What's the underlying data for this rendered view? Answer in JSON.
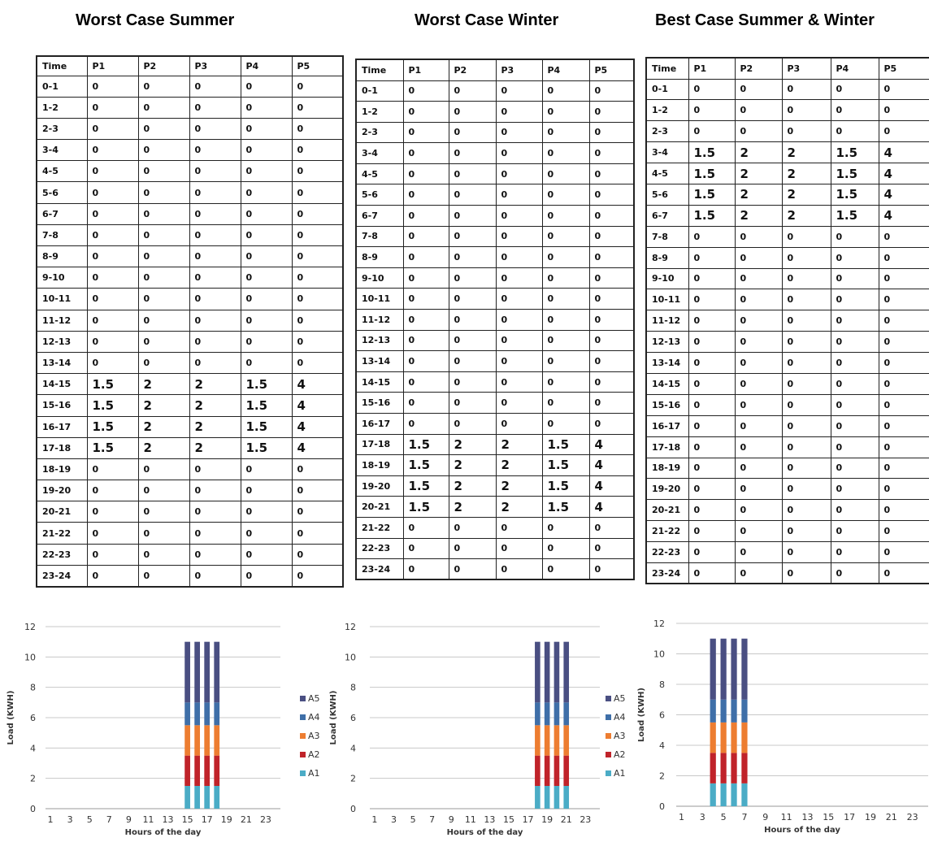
{
  "titles": [
    "Worst Case Summer",
    "Worst Case Winter",
    "Best Case Summer & Winter"
  ],
  "table_header": [
    "Time",
    "P1",
    "P2",
    "P3",
    "P4",
    "P5"
  ],
  "tables": [
    {
      "rows": [
        [
          "0-1",
          "0",
          "0",
          "0",
          "0",
          "0"
        ],
        [
          "1-2",
          "0",
          "0",
          "0",
          "0",
          "0"
        ],
        [
          "2-3",
          "0",
          "0",
          "0",
          "0",
          "0"
        ],
        [
          "3-4",
          "0",
          "0",
          "0",
          "0",
          "0"
        ],
        [
          "4-5",
          "0",
          "0",
          "0",
          "0",
          "0"
        ],
        [
          "5-6",
          "0",
          "0",
          "0",
          "0",
          "0"
        ],
        [
          "6-7",
          "0",
          "0",
          "0",
          "0",
          "0"
        ],
        [
          "7-8",
          "0",
          "0",
          "0",
          "0",
          "0"
        ],
        [
          "8-9",
          "0",
          "0",
          "0",
          "0",
          "0"
        ],
        [
          "9-10",
          "0",
          "0",
          "0",
          "0",
          "0"
        ],
        [
          "10-11",
          "0",
          "0",
          "0",
          "0",
          "0"
        ],
        [
          "11-12",
          "0",
          "0",
          "0",
          "0",
          "0"
        ],
        [
          "12-13",
          "0",
          "0",
          "0",
          "0",
          "0"
        ],
        [
          "13-14",
          "0",
          "0",
          "0",
          "0",
          "0"
        ],
        [
          "14-15",
          "1.5",
          "2",
          "2",
          "1.5",
          "4"
        ],
        [
          "15-16",
          "1.5",
          "2",
          "2",
          "1.5",
          "4"
        ],
        [
          "16-17",
          "1.5",
          "2",
          "2",
          "1.5",
          "4"
        ],
        [
          "17-18",
          "1.5",
          "2",
          "2",
          "1.5",
          "4"
        ],
        [
          "18-19",
          "0",
          "0",
          "0",
          "0",
          "0"
        ],
        [
          "19-20",
          "0",
          "0",
          "0",
          "0",
          "0"
        ],
        [
          "20-21",
          "0",
          "0",
          "0",
          "0",
          "0"
        ],
        [
          "21-22",
          "0",
          "0",
          "0",
          "0",
          "0"
        ],
        [
          "22-23",
          "0",
          "0",
          "0",
          "0",
          "0"
        ],
        [
          "23-24",
          "0",
          "0",
          "0",
          "0",
          "0"
        ]
      ]
    },
    {
      "rows": [
        [
          "0-1",
          "0",
          "0",
          "0",
          "0",
          "0"
        ],
        [
          "1-2",
          "0",
          "0",
          "0",
          "0",
          "0"
        ],
        [
          "2-3",
          "0",
          "0",
          "0",
          "0",
          "0"
        ],
        [
          "3-4",
          "0",
          "0",
          "0",
          "0",
          "0"
        ],
        [
          "4-5",
          "0",
          "0",
          "0",
          "0",
          "0"
        ],
        [
          "5-6",
          "0",
          "0",
          "0",
          "0",
          "0"
        ],
        [
          "6-7",
          "0",
          "0",
          "0",
          "0",
          "0"
        ],
        [
          "7-8",
          "0",
          "0",
          "0",
          "0",
          "0"
        ],
        [
          "8-9",
          "0",
          "0",
          "0",
          "0",
          "0"
        ],
        [
          "9-10",
          "0",
          "0",
          "0",
          "0",
          "0"
        ],
        [
          "10-11",
          "0",
          "0",
          "0",
          "0",
          "0"
        ],
        [
          "11-12",
          "0",
          "0",
          "0",
          "0",
          "0"
        ],
        [
          "12-13",
          "0",
          "0",
          "0",
          "0",
          "0"
        ],
        [
          "13-14",
          "0",
          "0",
          "0",
          "0",
          "0"
        ],
        [
          "14-15",
          "0",
          "0",
          "0",
          "0",
          "0"
        ],
        [
          "15-16",
          "0",
          "0",
          "0",
          "0",
          "0"
        ],
        [
          "16-17",
          "0",
          "0",
          "0",
          "0",
          "0"
        ],
        [
          "17-18",
          "1.5",
          "2",
          "2",
          "1.5",
          "4"
        ],
        [
          "18-19",
          "1.5",
          "2",
          "2",
          "1.5",
          "4"
        ],
        [
          "19-20",
          "1.5",
          "2",
          "2",
          "1.5",
          "4"
        ],
        [
          "20-21",
          "1.5",
          "2",
          "2",
          "1.5",
          "4"
        ],
        [
          "21-22",
          "0",
          "0",
          "0",
          "0",
          "0"
        ],
        [
          "22-23",
          "0",
          "0",
          "0",
          "0",
          "0"
        ],
        [
          "23-24",
          "0",
          "0",
          "0",
          "0",
          "0"
        ]
      ]
    },
    {
      "rows": [
        [
          "0-1",
          "0",
          "0",
          "0",
          "0",
          "0"
        ],
        [
          "1-2",
          "0",
          "0",
          "0",
          "0",
          "0"
        ],
        [
          "2-3",
          "0",
          "0",
          "0",
          "0",
          "0"
        ],
        [
          "3-4",
          "1.5",
          "2",
          "2",
          "1.5",
          "4"
        ],
        [
          "4-5",
          "1.5",
          "2",
          "2",
          "1.5",
          "4"
        ],
        [
          "5-6",
          "1.5",
          "2",
          "2",
          "1.5",
          "4"
        ],
        [
          "6-7",
          "1.5",
          "2",
          "2",
          "1.5",
          "4"
        ],
        [
          "7-8",
          "0",
          "0",
          "0",
          "0",
          "0"
        ],
        [
          "8-9",
          "0",
          "0",
          "0",
          "0",
          "0"
        ],
        [
          "9-10",
          "0",
          "0",
          "0",
          "0",
          "0"
        ],
        [
          "10-11",
          "0",
          "0",
          "0",
          "0",
          "0"
        ],
        [
          "11-12",
          "0",
          "0",
          "0",
          "0",
          "0"
        ],
        [
          "12-13",
          "0",
          "0",
          "0",
          "0",
          "0"
        ],
        [
          "13-14",
          "0",
          "0",
          "0",
          "0",
          "0"
        ],
        [
          "14-15",
          "0",
          "0",
          "0",
          "0",
          "0"
        ],
        [
          "15-16",
          "0",
          "0",
          "0",
          "0",
          "0"
        ],
        [
          "16-17",
          "0",
          "0",
          "0",
          "0",
          "0"
        ],
        [
          "17-18",
          "0",
          "0",
          "0",
          "0",
          "0"
        ],
        [
          "18-19",
          "0",
          "0",
          "0",
          "0",
          "0"
        ],
        [
          "19-20",
          "0",
          "0",
          "0",
          "0",
          "0"
        ],
        [
          "20-21",
          "0",
          "0",
          "0",
          "0",
          "0"
        ],
        [
          "21-22",
          "0",
          "0",
          "0",
          "0",
          "0"
        ],
        [
          "22-23",
          "0",
          "0",
          "0",
          "0",
          "0"
        ],
        [
          "23-24",
          "0",
          "0",
          "0",
          "0",
          "0"
        ]
      ]
    }
  ],
  "chart_data": [
    {
      "type": "bar",
      "stacked": true,
      "x": [
        1,
        2,
        3,
        4,
        5,
        6,
        7,
        8,
        9,
        10,
        11,
        12,
        13,
        14,
        15,
        16,
        17,
        18,
        19,
        20,
        21,
        22,
        23,
        24
      ],
      "xticks": [
        1,
        3,
        5,
        7,
        9,
        11,
        13,
        15,
        17,
        19,
        21,
        23
      ],
      "xlabel": "Hours of the day",
      "ylabel": "Load (KWH)",
      "ylim": [
        0,
        12
      ],
      "yticks": [
        0,
        2,
        4,
        6,
        8,
        10,
        12
      ],
      "grid": true,
      "legend": "right",
      "series": [
        {
          "name": "A1",
          "color": "#4bacc6",
          "values": [
            0,
            0,
            0,
            0,
            0,
            0,
            0,
            0,
            0,
            0,
            0,
            0,
            0,
            0,
            1.5,
            1.5,
            1.5,
            1.5,
            0,
            0,
            0,
            0,
            0,
            0
          ]
        },
        {
          "name": "A2",
          "color": "#c0232a",
          "values": [
            0,
            0,
            0,
            0,
            0,
            0,
            0,
            0,
            0,
            0,
            0,
            0,
            0,
            0,
            2,
            2,
            2,
            2,
            0,
            0,
            0,
            0,
            0,
            0
          ]
        },
        {
          "name": "A3",
          "color": "#ed7d31",
          "values": [
            0,
            0,
            0,
            0,
            0,
            0,
            0,
            0,
            0,
            0,
            0,
            0,
            0,
            0,
            2,
            2,
            2,
            2,
            0,
            0,
            0,
            0,
            0,
            0
          ]
        },
        {
          "name": "A4",
          "color": "#3f6fa8",
          "values": [
            0,
            0,
            0,
            0,
            0,
            0,
            0,
            0,
            0,
            0,
            0,
            0,
            0,
            0,
            1.5,
            1.5,
            1.5,
            1.5,
            0,
            0,
            0,
            0,
            0,
            0
          ]
        },
        {
          "name": "A5",
          "color": "#4a4f82",
          "values": [
            0,
            0,
            0,
            0,
            0,
            0,
            0,
            0,
            0,
            0,
            0,
            0,
            0,
            0,
            4,
            4,
            4,
            4,
            0,
            0,
            0,
            0,
            0,
            0
          ]
        }
      ]
    },
    {
      "type": "bar",
      "stacked": true,
      "x": [
        1,
        2,
        3,
        4,
        5,
        6,
        7,
        8,
        9,
        10,
        11,
        12,
        13,
        14,
        15,
        16,
        17,
        18,
        19,
        20,
        21,
        22,
        23,
        24
      ],
      "xticks": [
        1,
        3,
        5,
        7,
        9,
        11,
        13,
        15,
        17,
        19,
        21,
        23
      ],
      "xlabel": "Hours of the day",
      "ylabel": "Load (KWH)",
      "ylim": [
        0,
        12
      ],
      "yticks": [
        0,
        2,
        4,
        6,
        8,
        10,
        12
      ],
      "grid": true,
      "legend": "right",
      "series": [
        {
          "name": "A1",
          "color": "#4bacc6",
          "values": [
            0,
            0,
            0,
            0,
            0,
            0,
            0,
            0,
            0,
            0,
            0,
            0,
            0,
            0,
            0,
            0,
            0,
            1.5,
            1.5,
            1.5,
            1.5,
            0,
            0,
            0
          ]
        },
        {
          "name": "A2",
          "color": "#c0232a",
          "values": [
            0,
            0,
            0,
            0,
            0,
            0,
            0,
            0,
            0,
            0,
            0,
            0,
            0,
            0,
            0,
            0,
            0,
            2,
            2,
            2,
            2,
            0,
            0,
            0
          ]
        },
        {
          "name": "A3",
          "color": "#ed7d31",
          "values": [
            0,
            0,
            0,
            0,
            0,
            0,
            0,
            0,
            0,
            0,
            0,
            0,
            0,
            0,
            0,
            0,
            0,
            2,
            2,
            2,
            2,
            0,
            0,
            0
          ]
        },
        {
          "name": "A4",
          "color": "#3f6fa8",
          "values": [
            0,
            0,
            0,
            0,
            0,
            0,
            0,
            0,
            0,
            0,
            0,
            0,
            0,
            0,
            0,
            0,
            0,
            1.5,
            1.5,
            1.5,
            1.5,
            0,
            0,
            0
          ]
        },
        {
          "name": "A5",
          "color": "#4a4f82",
          "values": [
            0,
            0,
            0,
            0,
            0,
            0,
            0,
            0,
            0,
            0,
            0,
            0,
            0,
            0,
            0,
            0,
            0,
            4,
            4,
            4,
            4,
            0,
            0,
            0
          ]
        }
      ]
    },
    {
      "type": "bar",
      "stacked": true,
      "x": [
        1,
        2,
        3,
        4,
        5,
        6,
        7,
        8,
        9,
        10,
        11,
        12,
        13,
        14,
        15,
        16,
        17,
        18,
        19,
        20,
        21,
        22,
        23,
        24
      ],
      "xticks": [
        1,
        3,
        5,
        7,
        9,
        11,
        13,
        15,
        17,
        19,
        21,
        23
      ],
      "xlabel": "Hours of the day",
      "ylabel": "Load (KWH)",
      "ylim": [
        0,
        12
      ],
      "yticks": [
        0,
        2,
        4,
        6,
        8,
        10,
        12
      ],
      "grid": true,
      "legend": "none",
      "series": [
        {
          "name": "A1",
          "color": "#4bacc6",
          "values": [
            0,
            0,
            0,
            1.5,
            1.5,
            1.5,
            1.5,
            0,
            0,
            0,
            0,
            0,
            0,
            0,
            0,
            0,
            0,
            0,
            0,
            0,
            0,
            0,
            0,
            0
          ]
        },
        {
          "name": "A2",
          "color": "#c0232a",
          "values": [
            0,
            0,
            0,
            2,
            2,
            2,
            2,
            0,
            0,
            0,
            0,
            0,
            0,
            0,
            0,
            0,
            0,
            0,
            0,
            0,
            0,
            0,
            0,
            0
          ]
        },
        {
          "name": "A3",
          "color": "#ed7d31",
          "values": [
            0,
            0,
            0,
            2,
            2,
            2,
            2,
            0,
            0,
            0,
            0,
            0,
            0,
            0,
            0,
            0,
            0,
            0,
            0,
            0,
            0,
            0,
            0,
            0
          ]
        },
        {
          "name": "A4",
          "color": "#3f6fa8",
          "values": [
            0,
            0,
            0,
            1.5,
            1.5,
            1.5,
            1.5,
            0,
            0,
            0,
            0,
            0,
            0,
            0,
            0,
            0,
            0,
            0,
            0,
            0,
            0,
            0,
            0,
            0
          ]
        },
        {
          "name": "A5",
          "color": "#4a4f82",
          "values": [
            0,
            0,
            0,
            4,
            4,
            4,
            4,
            0,
            0,
            0,
            0,
            0,
            0,
            0,
            0,
            0,
            0,
            0,
            0,
            0,
            0,
            0,
            0,
            0
          ]
        }
      ]
    }
  ]
}
